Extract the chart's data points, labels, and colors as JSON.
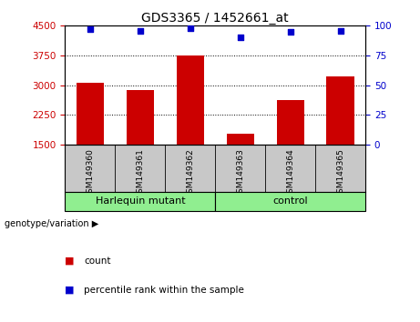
{
  "title": "GDS3365 / 1452661_at",
  "samples": [
    "GSM149360",
    "GSM149361",
    "GSM149362",
    "GSM149363",
    "GSM149364",
    "GSM149365"
  ],
  "counts": [
    3060,
    2870,
    3760,
    1760,
    2620,
    3230
  ],
  "percentile_ranks": [
    97,
    96,
    98,
    90,
    95,
    96
  ],
  "ylim_left": [
    1500,
    4500
  ],
  "ylim_right": [
    0,
    100
  ],
  "yticks_left": [
    1500,
    2250,
    3000,
    3750,
    4500
  ],
  "yticks_right": [
    0,
    25,
    50,
    75,
    100
  ],
  "bar_color": "#cc0000",
  "dot_color": "#0000cc",
  "bg_label": "#c8c8c8",
  "bg_group": "#90ee90",
  "group1_label": "Harlequin mutant",
  "group2_label": "control",
  "group1_indices": [
    0,
    1,
    2
  ],
  "group2_indices": [
    3,
    4,
    5
  ],
  "genotype_label": "genotype/variation",
  "legend_count": "count",
  "legend_percentile": "percentile rank within the sample",
  "bar_width": 0.55
}
